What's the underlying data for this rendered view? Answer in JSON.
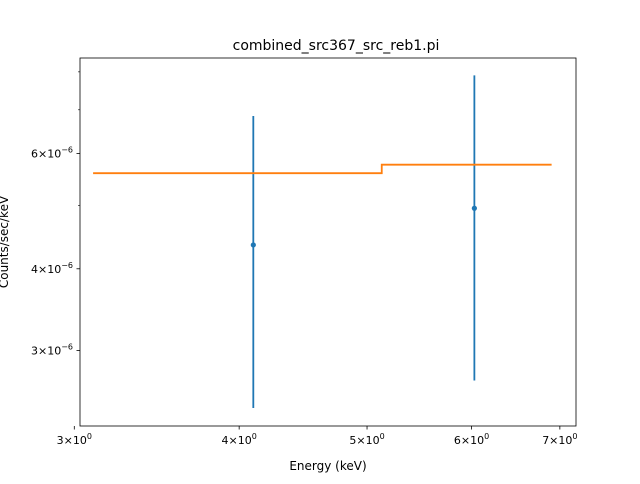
{
  "chart_data": {
    "type": "line",
    "title": "combined_src367_src_reb1.pi",
    "xlabel": "Energy (keV)",
    "ylabel": "Counts/sec/keV",
    "xscale": "log",
    "yscale": "log",
    "xlim": [
      3.03,
      7.2
    ],
    "ylim": [
      2.3e-06,
      8.4e-06
    ],
    "grid": false,
    "x_ticks": [
      {
        "value": 3,
        "mantissa": "3",
        "base": "10",
        "exp": "0"
      },
      {
        "value": 4,
        "mantissa": "4",
        "base": "10",
        "exp": "0"
      },
      {
        "value": 5,
        "mantissa": "5",
        "base": "10",
        "exp": "0"
      },
      {
        "value": 6,
        "mantissa": "6",
        "base": "10",
        "exp": "0"
      },
      {
        "value": 7,
        "mantissa": "7",
        "base": "10",
        "exp": "0"
      }
    ],
    "y_ticks": [
      {
        "value": 3e-06,
        "mantissa": "3",
        "base": "10",
        "exp": "−6"
      },
      {
        "value": 4e-06,
        "mantissa": "4",
        "base": "10",
        "exp": "−6"
      },
      {
        "value": 6e-06,
        "mantissa": "6",
        "base": "10",
        "exp": "−6"
      }
    ],
    "x_minor_ticks": [],
    "y_minor_ticks": [
      5e-06,
      7e-06,
      8e-06
    ],
    "series": [
      {
        "kind": "errorbar",
        "color": "#1f77b4",
        "points": [
          {
            "x": 4.1,
            "y": 4.35e-06,
            "ylo": 2.45e-06,
            "yhi": 6.85e-06
          },
          {
            "x": 6.03,
            "y": 4.95e-06,
            "ylo": 2.7e-06,
            "yhi": 7.9e-06
          }
        ]
      },
      {
        "kind": "step",
        "color": "#ff7f0e",
        "segments": [
          {
            "x0": 3.1,
            "x1": 5.13,
            "y": 5.6e-06
          },
          {
            "x0": 5.13,
            "x1": 6.9,
            "y": 5.77e-06
          }
        ]
      }
    ]
  }
}
